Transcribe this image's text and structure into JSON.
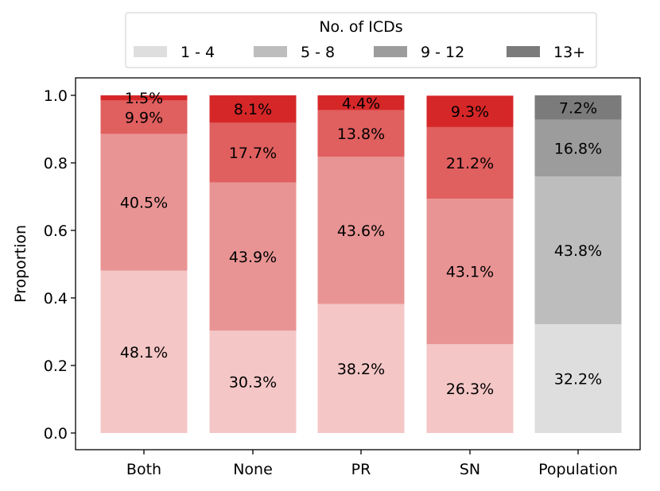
{
  "chart_data": {
    "type": "bar",
    "stacked": true,
    "categories": [
      "Both",
      "None",
      "PR",
      "SN",
      "Population"
    ],
    "series": [
      {
        "name": "1 - 4",
        "values": [
          0.481,
          0.303,
          0.382,
          0.263,
          0.322
        ],
        "labels": [
          "48.1%",
          "30.3%",
          "38.2%",
          "26.3%",
          "32.2%"
        ]
      },
      {
        "name": "5 - 8",
        "values": [
          0.405,
          0.439,
          0.436,
          0.431,
          0.438
        ],
        "labels": [
          "40.5%",
          "43.9%",
          "43.6%",
          "43.1%",
          "43.8%"
        ]
      },
      {
        "name": "9 - 12",
        "values": [
          0.099,
          0.177,
          0.138,
          0.212,
          0.168
        ],
        "labels": [
          "9.9%",
          "17.7%",
          "13.8%",
          "21.2%",
          "16.8%"
        ]
      },
      {
        "name": "13+",
        "values": [
          0.015,
          0.081,
          0.044,
          0.093,
          0.072
        ],
        "labels": [
          "1.5%",
          "8.1%",
          "4.4%",
          "9.3%",
          "7.2%"
        ]
      }
    ],
    "colors": {
      "red": [
        "#f5c6c6",
        "#e99494",
        "#e05f5f",
        "#d62728"
      ],
      "gray": [
        "#dedede",
        "#bdbdbd",
        "#9c9c9c",
        "#7b7b7b"
      ]
    },
    "gray_categories": [
      "Population"
    ],
    "ylabel": "Proportion",
    "ylim": [
      0,
      1.0
    ],
    "yticks": [
      0.0,
      0.2,
      0.4,
      0.6,
      0.8,
      1.0
    ],
    "ytick_labels": [
      "0.0",
      "0.2",
      "0.4",
      "0.6",
      "0.8",
      "1.0"
    ],
    "legend": {
      "title": "No. of ICDs",
      "placement": "top-center",
      "entries": [
        "1 - 4",
        "5 - 8",
        "9 - 12",
        "13+"
      ]
    },
    "grid": false
  }
}
